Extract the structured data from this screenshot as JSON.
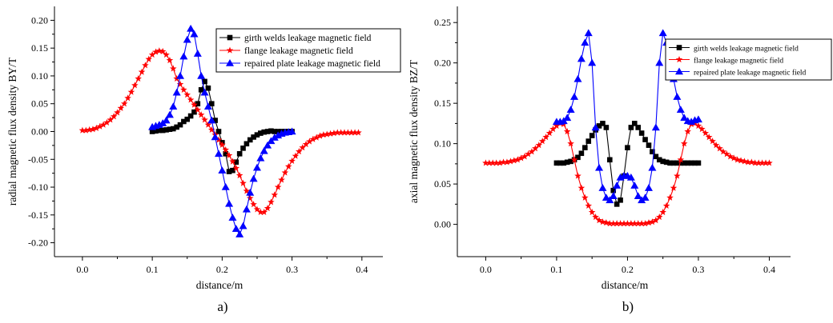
{
  "chart_data": [
    {
      "type": "line",
      "panel_label": "a)",
      "xlabel": "distance/m",
      "ylabel": "radial magnetic flux density BY/T",
      "xlim": [
        -0.04,
        0.43
      ],
      "ylim": [
        -0.225,
        0.225
      ],
      "xticks": [
        0.0,
        0.1,
        0.2,
        0.3,
        0.4
      ],
      "xtick_labels": [
        "0.0",
        "0.1",
        "0.2",
        "0.3",
        "0.4"
      ],
      "yticks": [
        -0.2,
        -0.15,
        -0.1,
        -0.05,
        0.0,
        0.05,
        0.1,
        0.15,
        0.2
      ],
      "ytick_labels": [
        "-0.20",
        "-0.15",
        "-0.10",
        "-0.05",
        "0.00",
        "0.05",
        "0.10",
        "0.15",
        "0.20"
      ],
      "legend_position": "top-right",
      "series": [
        {
          "name": "girth welds leakage magnetic field",
          "color": "#000000",
          "marker": "square",
          "x": [
            0.1,
            0.105,
            0.11,
            0.115,
            0.12,
            0.125,
            0.13,
            0.135,
            0.14,
            0.145,
            0.15,
            0.155,
            0.16,
            0.165,
            0.17,
            0.175,
            0.18,
            0.185,
            0.19,
            0.195,
            0.2,
            0.205,
            0.21,
            0.215,
            0.22,
            0.225,
            0.23,
            0.235,
            0.24,
            0.245,
            0.25,
            0.255,
            0.26,
            0.265,
            0.27,
            0.275,
            0.28,
            0.285,
            0.29,
            0.295,
            0.3
          ],
          "y": [
            0.0,
            0.001,
            0.002,
            0.002,
            0.003,
            0.004,
            0.005,
            0.008,
            0.012,
            0.018,
            0.022,
            0.028,
            0.035,
            0.05,
            0.075,
            0.09,
            0.078,
            0.05,
            0.02,
            0.0,
            -0.02,
            -0.04,
            -0.072,
            -0.07,
            -0.055,
            -0.04,
            -0.03,
            -0.022,
            -0.015,
            -0.01,
            -0.006,
            -0.003,
            -0.001,
            0.0,
            0.001,
            0.0,
            0.0,
            0.0,
            0.0,
            0.0,
            0.0
          ]
        },
        {
          "name": "flange leakage magnetic field",
          "color": "#ff0000",
          "marker": "star",
          "x": [
            0.0,
            0.005,
            0.01,
            0.015,
            0.02,
            0.025,
            0.03,
            0.035,
            0.04,
            0.045,
            0.05,
            0.055,
            0.06,
            0.065,
            0.07,
            0.075,
            0.08,
            0.085,
            0.09,
            0.095,
            0.1,
            0.105,
            0.11,
            0.115,
            0.12,
            0.125,
            0.13,
            0.135,
            0.14,
            0.145,
            0.15,
            0.155,
            0.16,
            0.165,
            0.17,
            0.175,
            0.18,
            0.185,
            0.19,
            0.195,
            0.2,
            0.205,
            0.21,
            0.215,
            0.22,
            0.225,
            0.23,
            0.235,
            0.24,
            0.245,
            0.25,
            0.255,
            0.26,
            0.265,
            0.27,
            0.275,
            0.28,
            0.285,
            0.29,
            0.295,
            0.3,
            0.305,
            0.31,
            0.315,
            0.32,
            0.325,
            0.33,
            0.335,
            0.34,
            0.345,
            0.35,
            0.355,
            0.36,
            0.365,
            0.37,
            0.375,
            0.38,
            0.385,
            0.39,
            0.395
          ],
          "y": [
            0.002,
            0.002,
            0.003,
            0.004,
            0.006,
            0.009,
            0.012,
            0.016,
            0.021,
            0.027,
            0.034,
            0.042,
            0.05,
            0.06,
            0.071,
            0.083,
            0.095,
            0.107,
            0.119,
            0.13,
            0.138,
            0.143,
            0.145,
            0.144,
            0.138,
            0.128,
            0.113,
            0.095,
            0.085,
            0.075,
            0.066,
            0.057,
            0.048,
            0.039,
            0.03,
            0.021,
            0.012,
            0.003,
            -0.006,
            -0.015,
            -0.024,
            -0.033,
            -0.043,
            -0.054,
            -0.066,
            -0.079,
            -0.093,
            -0.107,
            -0.12,
            -0.131,
            -0.14,
            -0.145,
            -0.145,
            -0.138,
            -0.127,
            -0.114,
            -0.1,
            -0.087,
            -0.074,
            -0.063,
            -0.053,
            -0.044,
            -0.036,
            -0.029,
            -0.023,
            -0.018,
            -0.014,
            -0.011,
            -0.008,
            -0.006,
            -0.005,
            -0.004,
            -0.003,
            -0.002,
            -0.002,
            -0.002,
            -0.002,
            -0.002,
            -0.002,
            -0.002
          ]
        },
        {
          "name": "repaired plate leakage magnetic field",
          "color": "#0000ff",
          "marker": "triangle",
          "x": [
            0.1,
            0.105,
            0.11,
            0.115,
            0.12,
            0.125,
            0.13,
            0.135,
            0.14,
            0.145,
            0.15,
            0.155,
            0.16,
            0.165,
            0.17,
            0.175,
            0.18,
            0.185,
            0.19,
            0.195,
            0.2,
            0.205,
            0.21,
            0.215,
            0.22,
            0.225,
            0.23,
            0.235,
            0.24,
            0.245,
            0.25,
            0.255,
            0.26,
            0.265,
            0.27,
            0.275,
            0.28,
            0.285,
            0.29,
            0.295,
            0.3
          ],
          "y": [
            0.008,
            0.01,
            0.012,
            0.015,
            0.02,
            0.03,
            0.045,
            0.07,
            0.1,
            0.135,
            0.165,
            0.185,
            0.175,
            0.14,
            0.1,
            0.07,
            0.045,
            0.02,
            -0.01,
            -0.04,
            -0.07,
            -0.1,
            -0.13,
            -0.155,
            -0.175,
            -0.185,
            -0.17,
            -0.14,
            -0.11,
            -0.085,
            -0.065,
            -0.048,
            -0.035,
            -0.025,
            -0.017,
            -0.011,
            -0.007,
            -0.004,
            -0.002,
            -0.001,
            0.0
          ]
        }
      ]
    },
    {
      "type": "line",
      "panel_label": "b)",
      "xlabel": "distance/m",
      "ylabel": "axial magnetic flux density BZ/T",
      "xlim": [
        -0.04,
        0.43
      ],
      "ylim": [
        -0.04,
        0.27
      ],
      "xticks": [
        0.0,
        0.1,
        0.2,
        0.3,
        0.4
      ],
      "xtick_labels": [
        "0.0",
        "0.1",
        "0.2",
        "0.3",
        "0.4"
      ],
      "yticks": [
        0.0,
        0.05,
        0.1,
        0.15,
        0.2,
        0.25
      ],
      "ytick_labels": [
        "0.00",
        "0.05",
        "0.10",
        "0.15",
        "0.20",
        "0.25"
      ],
      "legend_position": "top-right",
      "series": [
        {
          "name": "girth welds leakage magnetic field",
          "color": "#000000",
          "marker": "square",
          "x": [
            0.1,
            0.105,
            0.11,
            0.115,
            0.12,
            0.125,
            0.13,
            0.135,
            0.14,
            0.145,
            0.15,
            0.155,
            0.16,
            0.165,
            0.17,
            0.175,
            0.18,
            0.185,
            0.19,
            0.195,
            0.2,
            0.205,
            0.21,
            0.215,
            0.22,
            0.225,
            0.23,
            0.235,
            0.24,
            0.245,
            0.25,
            0.255,
            0.26,
            0.265,
            0.27,
            0.275,
            0.28,
            0.285,
            0.29,
            0.295,
            0.3
          ],
          "y": [
            0.076,
            0.076,
            0.076,
            0.077,
            0.078,
            0.08,
            0.083,
            0.088,
            0.095,
            0.103,
            0.11,
            0.117,
            0.122,
            0.125,
            0.12,
            0.08,
            0.042,
            0.025,
            0.03,
            0.06,
            0.095,
            0.12,
            0.125,
            0.12,
            0.113,
            0.105,
            0.098,
            0.09,
            0.084,
            0.08,
            0.078,
            0.077,
            0.076,
            0.076,
            0.076,
            0.076,
            0.076,
            0.076,
            0.076,
            0.076,
            0.076
          ]
        },
        {
          "name": "flange leakage magnetic field",
          "color": "#ff0000",
          "marker": "star",
          "x": [
            0.0,
            0.005,
            0.01,
            0.015,
            0.02,
            0.025,
            0.03,
            0.035,
            0.04,
            0.045,
            0.05,
            0.055,
            0.06,
            0.065,
            0.07,
            0.075,
            0.08,
            0.085,
            0.09,
            0.095,
            0.1,
            0.105,
            0.11,
            0.115,
            0.12,
            0.125,
            0.13,
            0.135,
            0.14,
            0.145,
            0.15,
            0.155,
            0.16,
            0.165,
            0.17,
            0.175,
            0.18,
            0.185,
            0.19,
            0.195,
            0.2,
            0.205,
            0.21,
            0.215,
            0.22,
            0.225,
            0.23,
            0.235,
            0.24,
            0.245,
            0.25,
            0.255,
            0.26,
            0.265,
            0.27,
            0.275,
            0.28,
            0.285,
            0.29,
            0.295,
            0.3,
            0.305,
            0.31,
            0.315,
            0.32,
            0.325,
            0.33,
            0.335,
            0.34,
            0.345,
            0.35,
            0.355,
            0.36,
            0.365,
            0.37,
            0.375,
            0.38,
            0.385,
            0.39,
            0.395,
            0.4
          ],
          "y": [
            0.076,
            0.076,
            0.076,
            0.076,
            0.076,
            0.077,
            0.077,
            0.078,
            0.079,
            0.08,
            0.082,
            0.084,
            0.087,
            0.09,
            0.094,
            0.098,
            0.103,
            0.108,
            0.113,
            0.118,
            0.122,
            0.125,
            0.124,
            0.115,
            0.1,
            0.08,
            0.06,
            0.045,
            0.033,
            0.023,
            0.015,
            0.009,
            0.005,
            0.003,
            0.002,
            0.001,
            0.001,
            0.001,
            0.001,
            0.001,
            0.001,
            0.001,
            0.001,
            0.001,
            0.001,
            0.001,
            0.002,
            0.003,
            0.005,
            0.009,
            0.015,
            0.023,
            0.033,
            0.045,
            0.06,
            0.08,
            0.1,
            0.115,
            0.124,
            0.125,
            0.122,
            0.118,
            0.113,
            0.108,
            0.103,
            0.098,
            0.094,
            0.09,
            0.087,
            0.084,
            0.082,
            0.08,
            0.079,
            0.078,
            0.077,
            0.077,
            0.076,
            0.076,
            0.076,
            0.076,
            0.076
          ]
        },
        {
          "name": "repaired plate leakage magnetic field",
          "color": "#0000ff",
          "marker": "triangle",
          "x": [
            0.1,
            0.105,
            0.11,
            0.115,
            0.12,
            0.125,
            0.13,
            0.135,
            0.14,
            0.145,
            0.15,
            0.155,
            0.16,
            0.165,
            0.17,
            0.175,
            0.18,
            0.185,
            0.19,
            0.195,
            0.2,
            0.205,
            0.21,
            0.215,
            0.22,
            0.225,
            0.23,
            0.235,
            0.24,
            0.245,
            0.25,
            0.255,
            0.26,
            0.265,
            0.27,
            0.275,
            0.28,
            0.285,
            0.29,
            0.295,
            0.3
          ],
          "y": [
            0.127,
            0.127,
            0.128,
            0.132,
            0.142,
            0.158,
            0.18,
            0.205,
            0.225,
            0.237,
            0.2,
            0.12,
            0.07,
            0.045,
            0.033,
            0.03,
            0.035,
            0.048,
            0.058,
            0.06,
            0.06,
            0.058,
            0.048,
            0.035,
            0.03,
            0.033,
            0.045,
            0.07,
            0.12,
            0.2,
            0.237,
            0.225,
            0.205,
            0.18,
            0.158,
            0.142,
            0.132,
            0.128,
            0.127,
            0.129,
            0.13
          ]
        }
      ]
    }
  ]
}
